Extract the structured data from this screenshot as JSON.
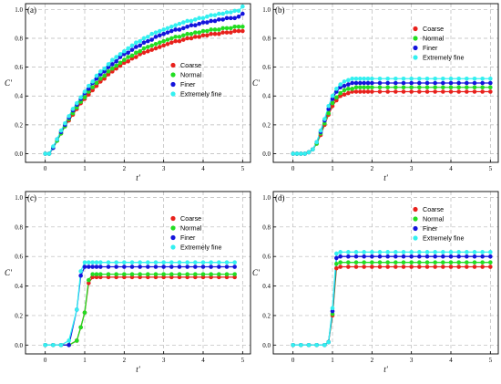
{
  "colors": {
    "Coarse": "#e8211c",
    "Normal": "#22dd22",
    "Finer": "#1414dc",
    "Extremely fine": "#33f0f0"
  },
  "chart_data": [
    {
      "type": "line",
      "panel_label": "(a)",
      "xlabel": "t'",
      "ylabel": "C'",
      "xlim": [
        -0.5,
        5.2
      ],
      "ylim": [
        -0.06,
        1.04
      ],
      "xticks": [
        "0",
        "1",
        "2",
        "3",
        "4",
        "5"
      ],
      "yticks": [
        "0.0",
        "0.2",
        "0.4",
        "0.6",
        "0.8",
        "1.0"
      ],
      "grid": true,
      "legend_position": "right, lower-middle",
      "x": [
        0,
        0.1,
        0.2,
        0.3,
        0.4,
        0.5,
        0.6,
        0.7,
        0.8,
        0.9,
        1.0,
        1.1,
        1.2,
        1.3,
        1.4,
        1.5,
        1.6,
        1.7,
        1.8,
        1.9,
        2.0,
        2.1,
        2.2,
        2.3,
        2.4,
        2.5,
        2.6,
        2.7,
        2.8,
        2.9,
        3.0,
        3.1,
        3.2,
        3.3,
        3.4,
        3.5,
        3.6,
        3.7,
        3.8,
        3.9,
        4.0,
        4.1,
        4.2,
        4.3,
        4.4,
        4.5,
        4.6,
        4.7,
        4.8,
        4.9,
        5.0
      ],
      "series": [
        {
          "name": "Coarse",
          "values": [
            0.0,
            0.0,
            0.04,
            0.09,
            0.14,
            0.19,
            0.23,
            0.27,
            0.31,
            0.35,
            0.38,
            0.41,
            0.44,
            0.47,
            0.5,
            0.52,
            0.55,
            0.57,
            0.59,
            0.61,
            0.63,
            0.64,
            0.66,
            0.67,
            0.69,
            0.7,
            0.71,
            0.72,
            0.73,
            0.74,
            0.75,
            0.76,
            0.77,
            0.78,
            0.78,
            0.79,
            0.8,
            0.8,
            0.81,
            0.81,
            0.82,
            0.82,
            0.83,
            0.83,
            0.83,
            0.84,
            0.84,
            0.84,
            0.85,
            0.85,
            0.85
          ]
        },
        {
          "name": "Normal",
          "values": [
            0.0,
            0.0,
            0.04,
            0.09,
            0.14,
            0.19,
            0.24,
            0.28,
            0.32,
            0.36,
            0.39,
            0.43,
            0.46,
            0.49,
            0.52,
            0.54,
            0.57,
            0.59,
            0.61,
            0.63,
            0.65,
            0.67,
            0.68,
            0.7,
            0.71,
            0.73,
            0.74,
            0.75,
            0.76,
            0.77,
            0.78,
            0.79,
            0.8,
            0.81,
            0.81,
            0.82,
            0.83,
            0.83,
            0.84,
            0.84,
            0.85,
            0.85,
            0.86,
            0.86,
            0.86,
            0.87,
            0.87,
            0.87,
            0.88,
            0.88,
            0.88
          ]
        },
        {
          "name": "Finer",
          "values": [
            0.0,
            0.0,
            0.04,
            0.1,
            0.15,
            0.2,
            0.25,
            0.3,
            0.34,
            0.38,
            0.42,
            0.45,
            0.49,
            0.52,
            0.55,
            0.57,
            0.6,
            0.62,
            0.64,
            0.67,
            0.69,
            0.7,
            0.72,
            0.74,
            0.75,
            0.77,
            0.78,
            0.79,
            0.81,
            0.82,
            0.83,
            0.84,
            0.85,
            0.86,
            0.86,
            0.87,
            0.88,
            0.89,
            0.89,
            0.9,
            0.91,
            0.91,
            0.92,
            0.92,
            0.93,
            0.93,
            0.94,
            0.94,
            0.94,
            0.95,
            0.97
          ]
        },
        {
          "name": "Extremely fine",
          "values": [
            0.0,
            0.0,
            0.05,
            0.1,
            0.16,
            0.21,
            0.26,
            0.31,
            0.35,
            0.39,
            0.43,
            0.47,
            0.5,
            0.54,
            0.57,
            0.59,
            0.62,
            0.65,
            0.67,
            0.69,
            0.71,
            0.73,
            0.75,
            0.77,
            0.78,
            0.8,
            0.81,
            0.83,
            0.84,
            0.85,
            0.86,
            0.87,
            0.88,
            0.89,
            0.9,
            0.91,
            0.92,
            0.92,
            0.93,
            0.94,
            0.94,
            0.95,
            0.96,
            0.96,
            0.97,
            0.97,
            0.98,
            0.98,
            0.99,
            0.99,
            1.02
          ]
        }
      ]
    },
    {
      "type": "line",
      "panel_label": "(b)",
      "xlabel": "t'",
      "ylabel": "C'",
      "xlim": [
        -0.5,
        5.2
      ],
      "ylim": [
        -0.06,
        1.04
      ],
      "xticks": [
        "0",
        "1",
        "2",
        "3",
        "4",
        "5"
      ],
      "yticks": [
        "0.0",
        "0.2",
        "0.4",
        "0.6",
        "0.8",
        "1.0"
      ],
      "grid": true,
      "legend_position": "top-right",
      "x": [
        0,
        0.1,
        0.2,
        0.3,
        0.4,
        0.5,
        0.6,
        0.7,
        0.8,
        0.9,
        1.0,
        1.1,
        1.2,
        1.3,
        1.4,
        1.5,
        1.6,
        1.7,
        1.8,
        1.9,
        2.0,
        2.2,
        2.4,
        2.6,
        2.8,
        3.0,
        3.2,
        3.4,
        3.6,
        3.8,
        4.0,
        4.2,
        4.4,
        4.6,
        4.8,
        5.0
      ],
      "series": [
        {
          "name": "Coarse",
          "values": [
            0.0,
            0.0,
            0.0,
            0.0,
            0.01,
            0.03,
            0.07,
            0.13,
            0.2,
            0.27,
            0.33,
            0.37,
            0.4,
            0.41,
            0.42,
            0.43,
            0.43,
            0.43,
            0.43,
            0.43,
            0.43,
            0.43,
            0.43,
            0.43,
            0.43,
            0.43,
            0.43,
            0.43,
            0.43,
            0.43,
            0.43,
            0.43,
            0.43,
            0.43,
            0.43,
            0.43
          ]
        },
        {
          "name": "Normal",
          "values": [
            0.0,
            0.0,
            0.0,
            0.0,
            0.01,
            0.03,
            0.07,
            0.14,
            0.21,
            0.28,
            0.35,
            0.39,
            0.42,
            0.44,
            0.45,
            0.45,
            0.46,
            0.46,
            0.46,
            0.46,
            0.46,
            0.46,
            0.46,
            0.46,
            0.46,
            0.46,
            0.46,
            0.46,
            0.46,
            0.46,
            0.46,
            0.46,
            0.46,
            0.46,
            0.46,
            0.46
          ]
        },
        {
          "name": "Finer",
          "values": [
            0.0,
            0.0,
            0.0,
            0.0,
            0.01,
            0.03,
            0.08,
            0.15,
            0.23,
            0.31,
            0.38,
            0.43,
            0.46,
            0.47,
            0.48,
            0.49,
            0.49,
            0.49,
            0.49,
            0.49,
            0.49,
            0.49,
            0.49,
            0.49,
            0.49,
            0.49,
            0.49,
            0.49,
            0.49,
            0.49,
            0.49,
            0.49,
            0.49,
            0.49,
            0.49,
            0.49
          ]
        },
        {
          "name": "Extremely fine",
          "values": [
            0.0,
            0.0,
            0.0,
            0.0,
            0.01,
            0.03,
            0.08,
            0.16,
            0.24,
            0.33,
            0.4,
            0.45,
            0.48,
            0.5,
            0.51,
            0.52,
            0.52,
            0.52,
            0.52,
            0.52,
            0.52,
            0.52,
            0.52,
            0.52,
            0.52,
            0.52,
            0.52,
            0.52,
            0.52,
            0.52,
            0.52,
            0.52,
            0.52,
            0.52,
            0.52,
            0.52
          ]
        }
      ]
    },
    {
      "type": "line",
      "panel_label": "(c)",
      "xlabel": "t'",
      "ylabel": "C'",
      "xlim": [
        -0.5,
        5.2
      ],
      "ylim": [
        -0.06,
        1.04
      ],
      "xticks": [
        "0",
        "1",
        "2",
        "3",
        "4",
        "5"
      ],
      "yticks": [
        "0.0",
        "0.2",
        "0.4",
        "0.6",
        "0.8",
        "1.0"
      ],
      "grid": true,
      "legend_position": "top-right",
      "x": [
        0,
        0.2,
        0.4,
        0.6,
        0.8,
        0.9,
        1.0,
        1.1,
        1.2,
        1.3,
        1.4,
        1.6,
        1.8,
        2.0,
        2.2,
        2.4,
        2.6,
        2.8,
        3.0,
        3.2,
        3.4,
        3.6,
        3.8,
        4.0,
        4.2,
        4.4,
        4.6,
        4.8
      ],
      "series": [
        {
          "name": "Coarse",
          "values": [
            0.0,
            0.0,
            0.0,
            0.0,
            0.03,
            0.12,
            0.22,
            0.42,
            0.46,
            0.46,
            0.46,
            0.46,
            0.46,
            0.46,
            0.46,
            0.46,
            0.46,
            0.46,
            0.46,
            0.46,
            0.46,
            0.46,
            0.46,
            0.46,
            0.46,
            0.46,
            0.46,
            0.46
          ]
        },
        {
          "name": "Normal",
          "values": [
            0.0,
            0.0,
            0.0,
            0.0,
            0.03,
            0.12,
            0.22,
            0.44,
            0.48,
            0.48,
            0.48,
            0.48,
            0.48,
            0.48,
            0.48,
            0.48,
            0.48,
            0.48,
            0.48,
            0.48,
            0.48,
            0.48,
            0.48,
            0.48,
            0.48,
            0.48,
            0.48,
            0.48
          ]
        },
        {
          "name": "Finer",
          "values": [
            0.0,
            0.0,
            0.0,
            0.0,
            0.24,
            0.47,
            0.53,
            0.53,
            0.53,
            0.53,
            0.53,
            0.53,
            0.53,
            0.53,
            0.53,
            0.53,
            0.53,
            0.53,
            0.53,
            0.53,
            0.53,
            0.53,
            0.53,
            0.53,
            0.53,
            0.53,
            0.53,
            0.53
          ]
        },
        {
          "name": "Extremely fine",
          "values": [
            0.0,
            0.0,
            0.0,
            0.03,
            0.24,
            0.5,
            0.56,
            0.56,
            0.56,
            0.56,
            0.56,
            0.56,
            0.56,
            0.56,
            0.56,
            0.56,
            0.56,
            0.56,
            0.56,
            0.56,
            0.56,
            0.56,
            0.56,
            0.56,
            0.56,
            0.56,
            0.56,
            0.56
          ]
        }
      ]
    },
    {
      "type": "line",
      "panel_label": "(d)",
      "xlabel": "t'",
      "ylabel": "C'",
      "xlim": [
        -0.5,
        5.2
      ],
      "ylim": [
        -0.06,
        1.04
      ],
      "xticks": [
        "0",
        "1",
        "2",
        "3",
        "4",
        "5"
      ],
      "yticks": [
        "0.0",
        "0.2",
        "0.4",
        "0.6",
        "0.8",
        "1.0"
      ],
      "grid": true,
      "legend_position": "top-right",
      "x": [
        0,
        0.2,
        0.4,
        0.6,
        0.8,
        0.9,
        1.0,
        1.1,
        1.2,
        1.4,
        1.6,
        1.8,
        2.0,
        2.2,
        2.4,
        2.6,
        2.8,
        3.0,
        3.2,
        3.4,
        3.6,
        3.8,
        4.0,
        4.2,
        4.4,
        4.6,
        4.8,
        5.0
      ],
      "series": [
        {
          "name": "Coarse",
          "values": [
            0.0,
            0.0,
            0.0,
            0.0,
            0.0,
            0.02,
            0.2,
            0.52,
            0.53,
            0.53,
            0.53,
            0.53,
            0.53,
            0.53,
            0.53,
            0.53,
            0.53,
            0.53,
            0.53,
            0.53,
            0.53,
            0.53,
            0.53,
            0.53,
            0.53,
            0.53,
            0.53,
            0.53
          ]
        },
        {
          "name": "Normal",
          "values": [
            0.0,
            0.0,
            0.0,
            0.0,
            0.0,
            0.02,
            0.21,
            0.55,
            0.56,
            0.56,
            0.56,
            0.56,
            0.56,
            0.56,
            0.56,
            0.56,
            0.56,
            0.56,
            0.56,
            0.56,
            0.56,
            0.56,
            0.56,
            0.56,
            0.56,
            0.56,
            0.56,
            0.56
          ]
        },
        {
          "name": "Finer",
          "values": [
            0.0,
            0.0,
            0.0,
            0.0,
            0.0,
            0.02,
            0.23,
            0.59,
            0.6,
            0.6,
            0.6,
            0.6,
            0.6,
            0.6,
            0.6,
            0.6,
            0.6,
            0.6,
            0.6,
            0.6,
            0.6,
            0.6,
            0.6,
            0.6,
            0.6,
            0.6,
            0.6,
            0.6
          ]
        },
        {
          "name": "Extremely fine",
          "values": [
            0.0,
            0.0,
            0.0,
            0.0,
            0.0,
            0.02,
            0.25,
            0.62,
            0.63,
            0.63,
            0.63,
            0.63,
            0.63,
            0.63,
            0.63,
            0.63,
            0.63,
            0.63,
            0.63,
            0.63,
            0.63,
            0.63,
            0.63,
            0.63,
            0.63,
            0.63,
            0.63,
            0.63
          ]
        }
      ]
    }
  ]
}
